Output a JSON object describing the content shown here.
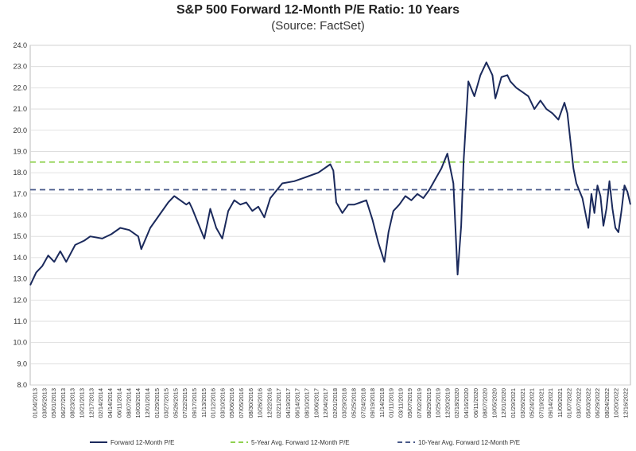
{
  "chart_data": {
    "type": "line",
    "title": "S&P 500 Forward 12-Month P/E Ratio: 10 Years",
    "subtitle": "(Source: FactSet)",
    "xlabel": "",
    "ylabel": "",
    "ylim": [
      8.0,
      24.0
    ],
    "y_ticks": [
      "8.0",
      "9.0",
      "10.0",
      "11.0",
      "12.0",
      "13.0",
      "14.0",
      "15.0",
      "16.0",
      "17.0",
      "18.0",
      "19.0",
      "20.0",
      "21.0",
      "22.0",
      "23.0",
      "24.0"
    ],
    "x_ticks": [
      "01/04/2013",
      "03/05/2013",
      "05/01/2013",
      "06/27/2013",
      "08/23/2013",
      "10/21/2013",
      "12/17/2013",
      "02/14/2014",
      "04/14/2014",
      "06/11/2014",
      "08/07/2014",
      "10/03/2014",
      "12/01/2014",
      "01/29/2015",
      "03/27/2015",
      "05/26/2015",
      "07/22/2015",
      "09/17/2015",
      "11/13/2015",
      "01/12/2016",
      "03/10/2016",
      "05/06/2016",
      "07/05/2016",
      "08/30/2016",
      "10/26/2016",
      "12/22/2016",
      "02/21/2017",
      "04/19/2017",
      "06/14/2017",
      "08/10/2017",
      "10/06/2017",
      "12/04/2017",
      "02/01/2018",
      "03/29/2018",
      "05/25/2018",
      "07/24/2018",
      "09/19/2018",
      "11/14/2018",
      "01/11/2019",
      "03/11/2019",
      "05/07/2019",
      "07/02/2019",
      "08/29/2019",
      "10/25/2019",
      "12/20/2019",
      "02/18/2020",
      "04/16/2020",
      "06/11/2020",
      "08/07/2020",
      "10/05/2020",
      "12/01/2020",
      "01/29/2021",
      "03/26/2021",
      "05/24/2021",
      "07/19/2021",
      "09/14/2021",
      "11/09/2021",
      "01/07/2022",
      "03/07/2022",
      "05/03/2022",
      "06/29/2022",
      "08/24/2022",
      "10/20/2022",
      "12/16/2022"
    ],
    "x_ticks_visible": [
      "01/04/2013",
      "03/05/2013",
      "05/01/2013",
      "06/27/2013",
      "08/23/2013",
      "10/21/2013",
      "12/17/2013",
      "02/14/2014",
      "04/14/2014",
      "06/11/2014",
      "08/07/2014",
      "10/03/2014",
      "12/01/2014",
      "01/29/2015",
      "03/27/2015",
      "05/26/2015",
      "07/22/2015",
      "09/17/2015",
      "11/13/2015",
      "01/12/2016",
      "03/10/2016",
      "05/06/2016",
      "07/05/2016",
      "08/30/2016",
      "10/26/2016",
      "12/22/2016",
      "02/21/2017",
      "04/19/2017",
      "06/14/2017",
      "08/10/2017",
      "10/06/2017",
      "12/04/2017",
      "02/01/2018",
      "03/29/2018",
      "05/25/2018",
      "07/24/2018",
      "09/19/2018",
      "11/14/2018",
      "01/11/2019",
      "03/11/2019",
      "05/07/2019",
      "07/02/2019",
      "08/29/2019",
      "10/25/2019",
      "12/20/2019",
      "02/18/2020",
      "04/16/2020",
      "06/11/2020",
      "08/07/2020",
      "10/05/2020",
      "12/01/2020",
      "01/29/2021",
      "03/26/2021",
      "05/24/2021",
      "07/19/2021",
      "09/14/2021",
      "11/09/2021",
      "01/07/2022",
      "03/07/2022",
      "05/03/2022",
      "06/29/2022",
      "08/24/2022",
      "10/20/2022",
      "12/16/2022"
    ],
    "series": [
      {
        "name": "Forward 12-Month P/E",
        "color": "#1b2a5c",
        "style": "solid",
        "x": [
          2013.0,
          2013.1,
          2013.2,
          2013.3,
          2013.4,
          2013.5,
          2013.6,
          2013.75,
          2013.9,
          2014.0,
          2014.2,
          2014.35,
          2014.5,
          2014.65,
          2014.8,
          2014.85,
          2015.0,
          2015.15,
          2015.3,
          2015.4,
          2015.5,
          2015.6,
          2015.65,
          2015.7,
          2015.8,
          2015.9,
          2016.0,
          2016.1,
          2016.2,
          2016.3,
          2016.4,
          2016.5,
          2016.6,
          2016.7,
          2016.8,
          2016.9,
          2017.0,
          2017.2,
          2017.4,
          2017.6,
          2017.8,
          2018.0,
          2018.05,
          2018.1,
          2018.2,
          2018.3,
          2018.4,
          2018.5,
          2018.6,
          2018.7,
          2018.8,
          2018.9,
          2018.97,
          2019.05,
          2019.15,
          2019.25,
          2019.35,
          2019.45,
          2019.55,
          2019.65,
          2019.75,
          2019.85,
          2019.95,
          2020.05,
          2020.12,
          2020.18,
          2020.22,
          2020.3,
          2020.4,
          2020.5,
          2020.6,
          2020.7,
          2020.75,
          2020.85,
          2020.95,
          2021.0,
          2021.1,
          2021.2,
          2021.3,
          2021.4,
          2021.5,
          2021.6,
          2021.7,
          2021.8,
          2021.9,
          2021.95,
          2022.0,
          2022.05,
          2022.1,
          2022.2,
          2022.3,
          2022.35,
          2022.4,
          2022.45,
          2022.5,
          2022.55,
          2022.6,
          2022.65,
          2022.7,
          2022.75,
          2022.8,
          2022.85,
          2022.9,
          2022.95,
          2023.0
        ],
        "values": [
          12.7,
          13.3,
          13.6,
          14.1,
          13.8,
          14.3,
          13.8,
          14.6,
          14.8,
          15.0,
          14.9,
          15.1,
          15.4,
          15.3,
          15.0,
          14.4,
          15.4,
          16.0,
          16.6,
          16.9,
          16.7,
          16.5,
          16.6,
          16.3,
          15.6,
          14.9,
          16.3,
          15.4,
          14.9,
          16.2,
          16.7,
          16.5,
          16.6,
          16.2,
          16.4,
          15.9,
          16.8,
          17.5,
          17.6,
          17.8,
          18.0,
          18.4,
          18.1,
          16.6,
          16.1,
          16.5,
          16.5,
          16.6,
          16.7,
          15.8,
          14.7,
          13.8,
          15.2,
          16.2,
          16.5,
          16.9,
          16.7,
          17.0,
          16.8,
          17.2,
          17.7,
          18.2,
          18.9,
          17.5,
          13.2,
          15.5,
          18.5,
          22.3,
          21.6,
          22.6,
          23.2,
          22.6,
          21.5,
          22.5,
          22.6,
          22.3,
          22.0,
          21.8,
          21.6,
          21.0,
          21.4,
          21.0,
          20.8,
          20.5,
          21.3,
          20.8,
          19.5,
          18.2,
          17.5,
          16.8,
          15.4,
          17.0,
          16.1,
          17.4,
          16.9,
          15.5,
          16.3,
          17.6,
          16.3,
          15.4,
          15.2,
          16.2,
          17.4,
          17.1,
          16.5
        ]
      },
      {
        "name": "5-Year Avg. Forward 12-Month P/E",
        "color": "#8fd14f",
        "style": "dashed",
        "value": 18.5
      },
      {
        "name": "10-Year Avg. Forward 12-Month P/E",
        "color": "#4a5a8a",
        "style": "dashed",
        "value": 17.2
      }
    ],
    "grid": true,
    "legend_position": "bottom"
  }
}
